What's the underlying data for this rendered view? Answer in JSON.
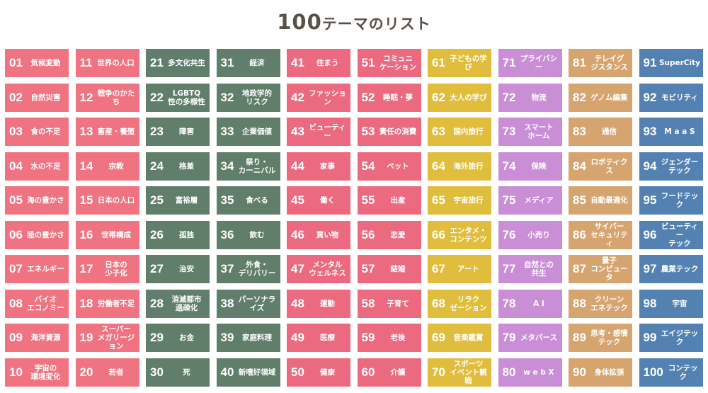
{
  "title": {
    "number": "100",
    "text": "テーマのリスト"
  },
  "colors": [
    "#ef7380",
    "#ef7380",
    "#607e6a",
    "#607e6a",
    "#eb6a80",
    "#eb6a80",
    "#e0bd3c",
    "#c98ed6",
    "#d5a46f",
    "#5382b2"
  ],
  "items": [
    {
      "num": "01",
      "label": "気候変動"
    },
    {
      "num": "02",
      "label": "自然災害"
    },
    {
      "num": "03",
      "label": "食の不足"
    },
    {
      "num": "04",
      "label": "水の不足"
    },
    {
      "num": "05",
      "label": "海の豊かさ"
    },
    {
      "num": "06",
      "label": "陸の豊かさ"
    },
    {
      "num": "07",
      "label": "エネルギー"
    },
    {
      "num": "08",
      "label": "バイオ\nエコノミー"
    },
    {
      "num": "09",
      "label": "海洋資源"
    },
    {
      "num": "10",
      "label": "宇宙の\n環境変化"
    },
    {
      "num": "11",
      "label": "世界の人口"
    },
    {
      "num": "12",
      "label": "戦争のかたち"
    },
    {
      "num": "13",
      "label": "畜産・養殖"
    },
    {
      "num": "14",
      "label": "宗教"
    },
    {
      "num": "15",
      "label": "日本の人口"
    },
    {
      "num": "16",
      "label": "世帯構成"
    },
    {
      "num": "17",
      "label": "日本の\n少子化"
    },
    {
      "num": "18",
      "label": "労働者不足"
    },
    {
      "num": "19",
      "label": "スーパー\nメガリージョン"
    },
    {
      "num": "20",
      "label": "若者"
    },
    {
      "num": "21",
      "label": "多文化共生"
    },
    {
      "num": "22",
      "label": "LGBTQ\n性の多様性"
    },
    {
      "num": "23",
      "label": "障害"
    },
    {
      "num": "24",
      "label": "格差"
    },
    {
      "num": "25",
      "label": "富裕層"
    },
    {
      "num": "26",
      "label": "孤独"
    },
    {
      "num": "27",
      "label": "治安"
    },
    {
      "num": "28",
      "label": "消滅都市\n過疎化"
    },
    {
      "num": "29",
      "label": "お金"
    },
    {
      "num": "30",
      "label": "死"
    },
    {
      "num": "31",
      "label": "経済"
    },
    {
      "num": "32",
      "label": "地政学的\nリスク"
    },
    {
      "num": "33",
      "label": "企業価値"
    },
    {
      "num": "34",
      "label": "祭り・\nカーニバル"
    },
    {
      "num": "35",
      "label": "食べる"
    },
    {
      "num": "36",
      "label": "飲む"
    },
    {
      "num": "37",
      "label": "外食・\nデリバリー"
    },
    {
      "num": "38",
      "label": "パーソナライズ"
    },
    {
      "num": "39",
      "label": "家庭料理"
    },
    {
      "num": "40",
      "label": "新嗜好領域"
    },
    {
      "num": "41",
      "label": "住まう"
    },
    {
      "num": "42",
      "label": "ファッション"
    },
    {
      "num": "43",
      "label": "ビューティー"
    },
    {
      "num": "44",
      "label": "家事"
    },
    {
      "num": "45",
      "label": "働く"
    },
    {
      "num": "46",
      "label": "買い物"
    },
    {
      "num": "47",
      "label": "メンタル\nウェルネス"
    },
    {
      "num": "48",
      "label": "運動"
    },
    {
      "num": "49",
      "label": "医療"
    },
    {
      "num": "50",
      "label": "健康"
    },
    {
      "num": "51",
      "label": "コミュニ\nケーション"
    },
    {
      "num": "52",
      "label": "睡眠・夢"
    },
    {
      "num": "53",
      "label": "責任の消費"
    },
    {
      "num": "54",
      "label": "ペット"
    },
    {
      "num": "55",
      "label": "出産"
    },
    {
      "num": "56",
      "label": "恋愛"
    },
    {
      "num": "57",
      "label": "結婚"
    },
    {
      "num": "58",
      "label": "子育て"
    },
    {
      "num": "59",
      "label": "老後"
    },
    {
      "num": "60",
      "label": "介護"
    },
    {
      "num": "61",
      "label": "子どもの学び"
    },
    {
      "num": "62",
      "label": "大人の学び"
    },
    {
      "num": "63",
      "label": "国内旅行"
    },
    {
      "num": "64",
      "label": "海外旅行"
    },
    {
      "num": "65",
      "label": "宇宙旅行"
    },
    {
      "num": "66",
      "label": "エンタメ・\nコンテンツ"
    },
    {
      "num": "67",
      "label": "アート"
    },
    {
      "num": "68",
      "label": "リラク\nゼーション"
    },
    {
      "num": "69",
      "label": "音楽鑑賞"
    },
    {
      "num": "70",
      "label": "スポーツ\nイベント観戦"
    },
    {
      "num": "71",
      "label": "プライバシー"
    },
    {
      "num": "72",
      "label": "物流"
    },
    {
      "num": "73",
      "label": "スマート\nホーム"
    },
    {
      "num": "74",
      "label": "保険"
    },
    {
      "num": "75",
      "label": "メディア"
    },
    {
      "num": "76",
      "label": "小売り"
    },
    {
      "num": "77",
      "label": "自然との\n共生"
    },
    {
      "num": "78",
      "label": "A I"
    },
    {
      "num": "79",
      "label": "メタバース"
    },
    {
      "num": "80",
      "label": "w e b X"
    },
    {
      "num": "81",
      "label": "テレイグ\nジスタンス"
    },
    {
      "num": "82",
      "label": "ゲノム編集"
    },
    {
      "num": "83",
      "label": "通信"
    },
    {
      "num": "84",
      "label": "ロボティクス"
    },
    {
      "num": "85",
      "label": "自動最適化"
    },
    {
      "num": "86",
      "label": "サイバー\nセキュリティ"
    },
    {
      "num": "87",
      "label": "量子\nコンピュータ"
    },
    {
      "num": "88",
      "label": "クリーン\nエネテック"
    },
    {
      "num": "89",
      "label": "思考・感情\nテック"
    },
    {
      "num": "90",
      "label": "身体拡張"
    },
    {
      "num": "91",
      "label": "SuperCity"
    },
    {
      "num": "92",
      "label": "モビリティ"
    },
    {
      "num": "93",
      "label": "M a a S"
    },
    {
      "num": "94",
      "label": "ジェンダー\nテック"
    },
    {
      "num": "95",
      "label": "フードテック"
    },
    {
      "num": "96",
      "label": "ビューティー\nテック"
    },
    {
      "num": "97",
      "label": "農業テック"
    },
    {
      "num": "98",
      "label": "宇宙"
    },
    {
      "num": "99",
      "label": "エイジテック"
    },
    {
      "num": "100",
      "label": "コンテック"
    }
  ]
}
